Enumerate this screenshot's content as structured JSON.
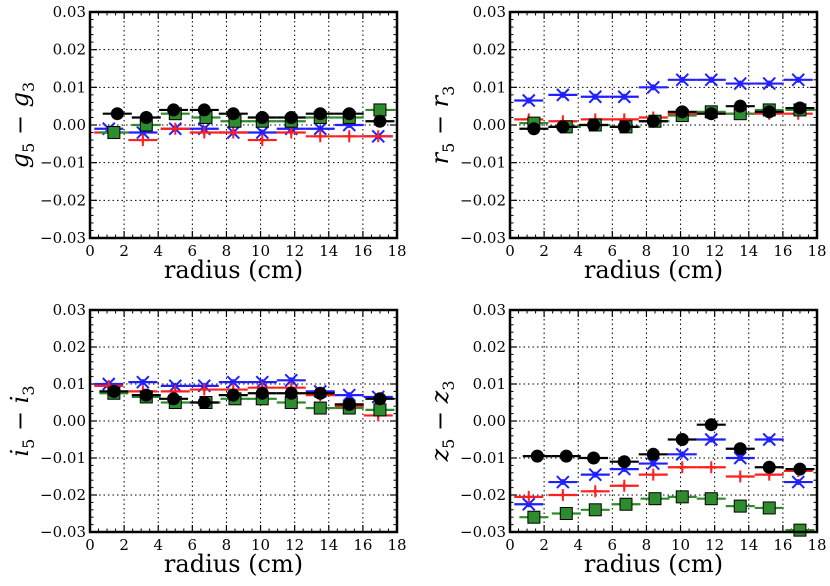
{
  "chart_data": [
    {
      "type": "scatter",
      "panel": "top-left",
      "ylabel_var": "g",
      "ylabel_sub1": "5",
      "ylabel_minus": " − ",
      "ylabel_sub2": "3",
      "xlabel": "radius    (cm)",
      "xlim": [
        0,
        18
      ],
      "ylim": [
        -0.03,
        0.03
      ],
      "xticks": [
        "0",
        "2",
        "4",
        "6",
        "8",
        "10",
        "12",
        "14",
        "16",
        "18"
      ],
      "yticks": [
        "−0.03",
        "−0.02",
        "−0.01",
        "0.00",
        "0.01",
        "0.02",
        "0.03"
      ],
      "series": [
        {
          "name": "blue",
          "color": "#1f1fff",
          "marker": "x",
          "x": [
            1.1,
            3.1,
            5.0,
            6.7,
            8.4,
            10.1,
            11.8,
            13.5,
            15.2,
            16.9
          ],
          "y": [
            -0.001,
            -0.002,
            -0.001,
            -0.001,
            -0.002,
            -0.002,
            -0.001,
            -0.001,
            0.0,
            -0.003
          ]
        },
        {
          "name": "red",
          "color": "#ff1f1f",
          "marker": "+",
          "x": [
            1.1,
            3.1,
            5.0,
            6.7,
            8.4,
            10.1,
            11.8,
            13.5,
            15.2,
            16.9
          ],
          "y": [
            -0.002,
            -0.004,
            -0.001,
            -0.002,
            -0.002,
            -0.004,
            -0.002,
            -0.003,
            -0.003,
            -0.003
          ]
        },
        {
          "name": "green",
          "color": "#2e8b2e",
          "marker": "s",
          "x": [
            1.4,
            3.3,
            5.0,
            6.8,
            8.5,
            10.1,
            11.8,
            13.5,
            15.2,
            17.0
          ],
          "y": [
            -0.002,
            0.0,
            0.003,
            0.002,
            0.001,
            0.001,
            0.001,
            0.002,
            0.002,
            0.004
          ]
        },
        {
          "name": "black",
          "color": "#000000",
          "marker": "o",
          "x": [
            1.6,
            3.3,
            4.9,
            6.7,
            8.4,
            10.1,
            11.8,
            13.5,
            15.2,
            17.0
          ],
          "y": [
            0.003,
            0.002,
            0.004,
            0.004,
            0.003,
            0.002,
            0.002,
            0.003,
            0.003,
            0.001
          ]
        }
      ]
    },
    {
      "type": "scatter",
      "panel": "top-right",
      "ylabel_var": "r",
      "ylabel_sub1": "5",
      "ylabel_minus": " − ",
      "ylabel_sub2": "3",
      "xlabel": "radius    (cm)",
      "xlim": [
        0,
        18
      ],
      "ylim": [
        -0.03,
        0.03
      ],
      "xticks": [
        "0",
        "2",
        "4",
        "6",
        "8",
        "10",
        "12",
        "14",
        "16",
        "18"
      ],
      "yticks": [
        "−0.03",
        "−0.02",
        "−0.01",
        "0.00",
        "0.01",
        "0.02",
        "0.03"
      ],
      "series": [
        {
          "name": "blue",
          "color": "#1f1fff",
          "marker": "x",
          "x": [
            1.1,
            3.1,
            5.0,
            6.7,
            8.4,
            10.1,
            11.8,
            13.5,
            15.2,
            16.9
          ],
          "y": [
            0.0065,
            0.008,
            0.0075,
            0.0075,
            0.01,
            0.012,
            0.012,
            0.011,
            0.011,
            0.012
          ]
        },
        {
          "name": "red",
          "color": "#ff1f1f",
          "marker": "+",
          "x": [
            1.1,
            3.1,
            5.0,
            6.7,
            8.4,
            10.1,
            11.8,
            13.5,
            15.2,
            16.9
          ],
          "y": [
            0.0015,
            0.001,
            0.0015,
            0.0015,
            0.002,
            0.003,
            0.003,
            0.003,
            0.003,
            0.003
          ]
        },
        {
          "name": "green",
          "color": "#2e8b2e",
          "marker": "s",
          "x": [
            1.4,
            3.3,
            5.0,
            6.8,
            8.5,
            10.1,
            11.8,
            13.5,
            15.2,
            17.0
          ],
          "y": [
            0.0005,
            -0.0005,
            0.0,
            -0.0005,
            0.001,
            0.0025,
            0.0035,
            0.003,
            0.004,
            0.004
          ]
        },
        {
          "name": "black",
          "color": "#000000",
          "marker": "o",
          "x": [
            1.4,
            3.1,
            4.9,
            6.7,
            8.4,
            10.1,
            11.8,
            13.5,
            15.2,
            17.0
          ],
          "y": [
            -0.001,
            -0.0005,
            0.0,
            -0.0005,
            0.001,
            0.0035,
            0.003,
            0.005,
            0.0035,
            0.0045
          ]
        }
      ]
    },
    {
      "type": "scatter",
      "panel": "bottom-left",
      "ylabel_var": "i",
      "ylabel_sub1": "5",
      "ylabel_minus": " − ",
      "ylabel_sub2": "3",
      "xlabel": "radius    (cm)",
      "xlim": [
        0,
        18
      ],
      "ylim": [
        -0.03,
        0.03
      ],
      "xticks": [
        "0",
        "2",
        "4",
        "6",
        "8",
        "10",
        "12",
        "14",
        "16",
        "18"
      ],
      "yticks": [
        "−0.03",
        "−0.02",
        "−0.01",
        "0.00",
        "0.01",
        "0.02",
        "0.03"
      ],
      "series": [
        {
          "name": "blue",
          "color": "#1f1fff",
          "marker": "x",
          "x": [
            1.1,
            3.1,
            5.0,
            6.7,
            8.4,
            10.1,
            11.8,
            13.5,
            15.2,
            16.9
          ],
          "y": [
            0.01,
            0.0105,
            0.0095,
            0.0095,
            0.0105,
            0.0105,
            0.011,
            0.008,
            0.007,
            0.0065
          ]
        },
        {
          "name": "red",
          "color": "#ff1f1f",
          "marker": "+",
          "x": [
            1.1,
            3.1,
            5.0,
            6.7,
            8.4,
            10.1,
            11.8,
            13.5,
            15.2,
            16.9
          ],
          "y": [
            0.0095,
            0.008,
            0.008,
            0.0085,
            0.0085,
            0.009,
            0.009,
            0.007,
            0.004,
            0.0015
          ]
        },
        {
          "name": "green",
          "color": "#2e8b2e",
          "marker": "s",
          "x": [
            1.4,
            3.3,
            5.0,
            6.8,
            8.5,
            10.1,
            11.8,
            13.5,
            15.2,
            17.0
          ],
          "y": [
            0.0075,
            0.0065,
            0.005,
            0.005,
            0.006,
            0.006,
            0.005,
            0.0035,
            0.0035,
            0.003
          ]
        },
        {
          "name": "black",
          "color": "#000000",
          "marker": "o",
          "x": [
            1.4,
            3.3,
            4.9,
            6.7,
            8.4,
            10.1,
            11.8,
            13.5,
            15.2,
            17.0
          ],
          "y": [
            0.008,
            0.007,
            0.006,
            0.005,
            0.007,
            0.0075,
            0.0075,
            0.0075,
            0.0045,
            0.006
          ]
        }
      ]
    },
    {
      "type": "scatter",
      "panel": "bottom-right",
      "ylabel_var": "z",
      "ylabel_sub1": "5",
      "ylabel_minus": " − ",
      "ylabel_sub2": "3",
      "xlabel": "radius    (cm)",
      "xlim": [
        0,
        18
      ],
      "ylim": [
        -0.03,
        0.03
      ],
      "xticks": [
        "0",
        "2",
        "4",
        "6",
        "8",
        "10",
        "12",
        "14",
        "16",
        "18"
      ],
      "yticks": [
        "−0.03",
        "−0.02",
        "−0.01",
        "0.00",
        "0.01",
        "0.02",
        "0.03"
      ],
      "series": [
        {
          "name": "blue",
          "color": "#1f1fff",
          "marker": "x",
          "x": [
            1.1,
            3.1,
            5.0,
            6.7,
            8.4,
            10.1,
            11.8,
            13.5,
            15.2,
            16.9
          ],
          "y": [
            -0.0225,
            -0.0165,
            -0.0145,
            -0.013,
            -0.0115,
            -0.009,
            -0.005,
            -0.01,
            -0.005,
            -0.0165
          ]
        },
        {
          "name": "red",
          "color": "#ff1f1f",
          "marker": "+",
          "x": [
            1.1,
            3.1,
            5.0,
            6.7,
            8.4,
            10.1,
            11.8,
            13.5,
            15.2,
            16.9
          ],
          "y": [
            -0.0205,
            -0.02,
            -0.019,
            -0.0175,
            -0.0145,
            -0.0125,
            -0.0125,
            -0.015,
            -0.0145,
            -0.0135
          ]
        },
        {
          "name": "green",
          "color": "#2e8b2e",
          "marker": "s",
          "x": [
            1.4,
            3.3,
            5.0,
            6.8,
            8.5,
            10.1,
            11.8,
            13.5,
            15.2,
            17.0
          ],
          "y": [
            -0.026,
            -0.025,
            -0.024,
            -0.0225,
            -0.021,
            -0.0205,
            -0.021,
            -0.023,
            -0.0235,
            -0.0295
          ]
        },
        {
          "name": "black",
          "color": "#000000",
          "marker": "o",
          "x": [
            1.6,
            3.3,
            4.9,
            6.7,
            8.4,
            10.1,
            11.8,
            13.5,
            15.2,
            17.0
          ],
          "y": [
            -0.0095,
            -0.0095,
            -0.01,
            -0.011,
            -0.009,
            -0.005,
            -0.001,
            -0.0075,
            -0.0125,
            -0.013
          ]
        }
      ]
    }
  ]
}
